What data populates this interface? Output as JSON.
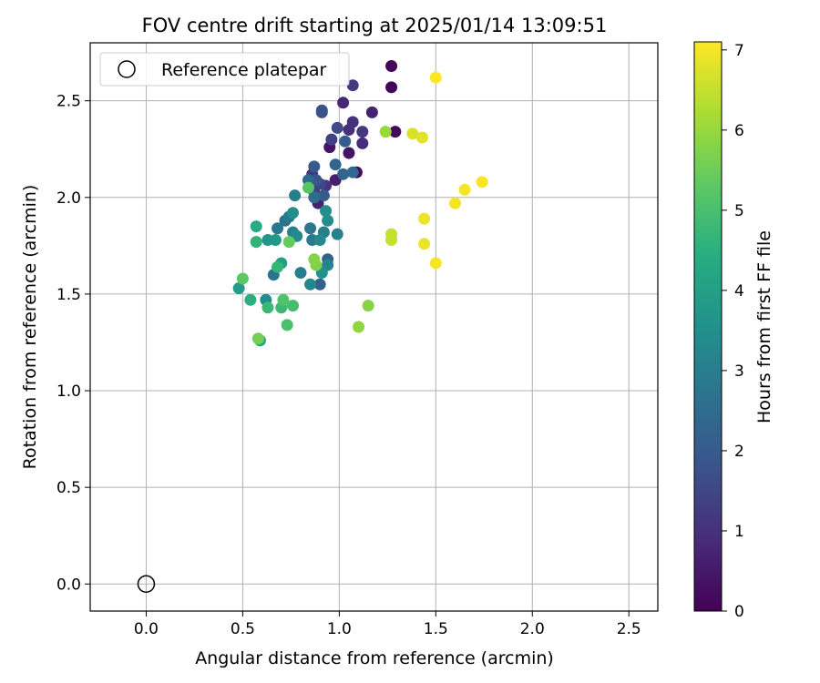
{
  "chart_data": {
    "type": "scatter",
    "title": "FOV centre drift starting at 2025/01/14 13:09:51",
    "xlabel": "Angular distance from reference (arcmin)",
    "ylabel": "Rotation from reference (arcmin)",
    "xlim": [
      -0.29,
      2.65
    ],
    "ylim": [
      -0.14,
      2.8
    ],
    "x_ticks": [
      "0.0",
      "0.5",
      "1.0",
      "1.5",
      "2.0",
      "2.5"
    ],
    "y_ticks": [
      "0.0",
      "0.5",
      "1.0",
      "1.5",
      "2.0",
      "2.5"
    ],
    "grid": true,
    "legend": {
      "position": "top-left",
      "entries": [
        "Reference platepar"
      ]
    },
    "reference_point": {
      "x": 0.0,
      "y": 0.0
    },
    "colorbar": {
      "label": "Hours from first FF file",
      "min": 0,
      "max": 7.1,
      "ticks": [
        "0",
        "1",
        "2",
        "3",
        "4",
        "5",
        "6",
        "7"
      ],
      "colormap": "viridis"
    },
    "points": [
      {
        "x": 1.27,
        "y": 2.68,
        "c": 0.1
      },
      {
        "x": 1.27,
        "y": 2.57,
        "c": 0.1
      },
      {
        "x": 1.29,
        "y": 2.34,
        "c": 0.15
      },
      {
        "x": 1.09,
        "y": 2.13,
        "c": 0.2
      },
      {
        "x": 1.05,
        "y": 2.23,
        "c": 0.4
      },
      {
        "x": 0.95,
        "y": 2.26,
        "c": 0.4
      },
      {
        "x": 0.98,
        "y": 2.09,
        "c": 0.6
      },
      {
        "x": 0.89,
        "y": 1.97,
        "c": 0.7
      },
      {
        "x": 1.17,
        "y": 2.44,
        "c": 0.7
      },
      {
        "x": 1.02,
        "y": 2.49,
        "c": 0.8
      },
      {
        "x": 1.12,
        "y": 2.28,
        "c": 0.9
      },
      {
        "x": 1.07,
        "y": 2.39,
        "c": 1.0
      },
      {
        "x": 1.05,
        "y": 2.35,
        "c": 1.0
      },
      {
        "x": 0.93,
        "y": 2.06,
        "c": 1.1
      },
      {
        "x": 0.86,
        "y": 2.12,
        "c": 1.2
      },
      {
        "x": 1.07,
        "y": 2.58,
        "c": 1.2
      },
      {
        "x": 1.12,
        "y": 2.34,
        "c": 1.2
      },
      {
        "x": 0.96,
        "y": 2.3,
        "c": 1.4
      },
      {
        "x": 0.87,
        "y": 2.03,
        "c": 1.4
      },
      {
        "x": 0.9,
        "y": 2.07,
        "c": 1.5
      },
      {
        "x": 0.99,
        "y": 2.36,
        "c": 1.6
      },
      {
        "x": 0.91,
        "y": 2.44,
        "c": 1.8
      },
      {
        "x": 0.91,
        "y": 2.45,
        "c": 1.8
      },
      {
        "x": 0.88,
        "y": 2.09,
        "c": 1.9
      },
      {
        "x": 0.87,
        "y": 2.16,
        "c": 2.0
      },
      {
        "x": 0.92,
        "y": 2.01,
        "c": 2.0
      },
      {
        "x": 1.03,
        "y": 2.29,
        "c": 2.1
      },
      {
        "x": 0.94,
        "y": 1.68,
        "c": 2.2
      },
      {
        "x": 0.9,
        "y": 1.55,
        "c": 2.2
      },
      {
        "x": 0.98,
        "y": 2.17,
        "c": 2.3
      },
      {
        "x": 1.02,
        "y": 2.12,
        "c": 2.3
      },
      {
        "x": 1.07,
        "y": 2.13,
        "c": 2.4
      },
      {
        "x": 0.84,
        "y": 2.09,
        "c": 2.4
      },
      {
        "x": 0.87,
        "y": 2.0,
        "c": 2.5
      },
      {
        "x": 0.72,
        "y": 1.88,
        "c": 2.6
      },
      {
        "x": 0.66,
        "y": 1.6,
        "c": 2.7
      },
      {
        "x": 0.68,
        "y": 1.84,
        "c": 2.8
      },
      {
        "x": 0.85,
        "y": 1.84,
        "c": 2.8
      },
      {
        "x": 0.86,
        "y": 1.78,
        "c": 2.9
      },
      {
        "x": 0.74,
        "y": 1.9,
        "c": 2.9
      },
      {
        "x": 0.77,
        "y": 2.01,
        "c": 3.0
      },
      {
        "x": 0.8,
        "y": 1.61,
        "c": 3.0
      },
      {
        "x": 0.92,
        "y": 1.82,
        "c": 3.0
      },
      {
        "x": 0.76,
        "y": 1.82,
        "c": 3.1
      },
      {
        "x": 0.99,
        "y": 1.81,
        "c": 3.1
      },
      {
        "x": 0.94,
        "y": 1.65,
        "c": 3.2
      },
      {
        "x": 0.85,
        "y": 1.55,
        "c": 3.2
      },
      {
        "x": 0.78,
        "y": 1.8,
        "c": 3.3
      },
      {
        "x": 0.9,
        "y": 1.78,
        "c": 3.3
      },
      {
        "x": 0.94,
        "y": 1.88,
        "c": 3.4
      },
      {
        "x": 0.62,
        "y": 1.47,
        "c": 3.4
      },
      {
        "x": 0.93,
        "y": 1.93,
        "c": 3.5
      },
      {
        "x": 0.76,
        "y": 1.92,
        "c": 3.5
      },
      {
        "x": 0.91,
        "y": 1.61,
        "c": 3.6
      },
      {
        "x": 0.63,
        "y": 1.78,
        "c": 3.7
      },
      {
        "x": 0.67,
        "y": 1.78,
        "c": 3.8
      },
      {
        "x": 0.48,
        "y": 1.53,
        "c": 3.9
      },
      {
        "x": 0.7,
        "y": 1.66,
        "c": 4.0
      },
      {
        "x": 0.59,
        "y": 1.26,
        "c": 4.2
      },
      {
        "x": 0.57,
        "y": 1.85,
        "c": 4.4
      },
      {
        "x": 0.54,
        "y": 1.47,
        "c": 4.5
      },
      {
        "x": 0.57,
        "y": 1.77,
        "c": 4.6
      },
      {
        "x": 0.68,
        "y": 1.64,
        "c": 4.7
      },
      {
        "x": 0.63,
        "y": 1.43,
        "c": 4.8
      },
      {
        "x": 0.7,
        "y": 1.43,
        "c": 4.8
      },
      {
        "x": 0.76,
        "y": 1.44,
        "c": 4.9
      },
      {
        "x": 0.73,
        "y": 1.34,
        "c": 5.0
      },
      {
        "x": 0.71,
        "y": 1.47,
        "c": 5.1
      },
      {
        "x": 0.84,
        "y": 2.05,
        "c": 5.2
      },
      {
        "x": 0.5,
        "y": 1.58,
        "c": 5.3
      },
      {
        "x": 0.74,
        "y": 1.77,
        "c": 5.4
      },
      {
        "x": 0.58,
        "y": 1.27,
        "c": 5.6
      },
      {
        "x": 0.88,
        "y": 1.65,
        "c": 5.7
      },
      {
        "x": 0.87,
        "y": 1.68,
        "c": 5.8
      },
      {
        "x": 1.15,
        "y": 1.44,
        "c": 5.8
      },
      {
        "x": 1.1,
        "y": 1.33,
        "c": 5.9
      },
      {
        "x": 1.24,
        "y": 2.34,
        "c": 6.0
      },
      {
        "x": 1.27,
        "y": 1.81,
        "c": 6.5
      },
      {
        "x": 1.27,
        "y": 1.78,
        "c": 6.5
      },
      {
        "x": 1.38,
        "y": 2.33,
        "c": 6.7
      },
      {
        "x": 1.43,
        "y": 2.31,
        "c": 6.8
      },
      {
        "x": 1.44,
        "y": 1.89,
        "c": 6.9
      },
      {
        "x": 1.44,
        "y": 1.76,
        "c": 6.9
      },
      {
        "x": 1.5,
        "y": 1.66,
        "c": 7.0
      },
      {
        "x": 1.6,
        "y": 1.97,
        "c": 7.0
      },
      {
        "x": 1.65,
        "y": 2.04,
        "c": 7.0
      },
      {
        "x": 1.74,
        "y": 2.08,
        "c": 7.05
      },
      {
        "x": 1.5,
        "y": 2.62,
        "c": 7.1
      }
    ]
  }
}
